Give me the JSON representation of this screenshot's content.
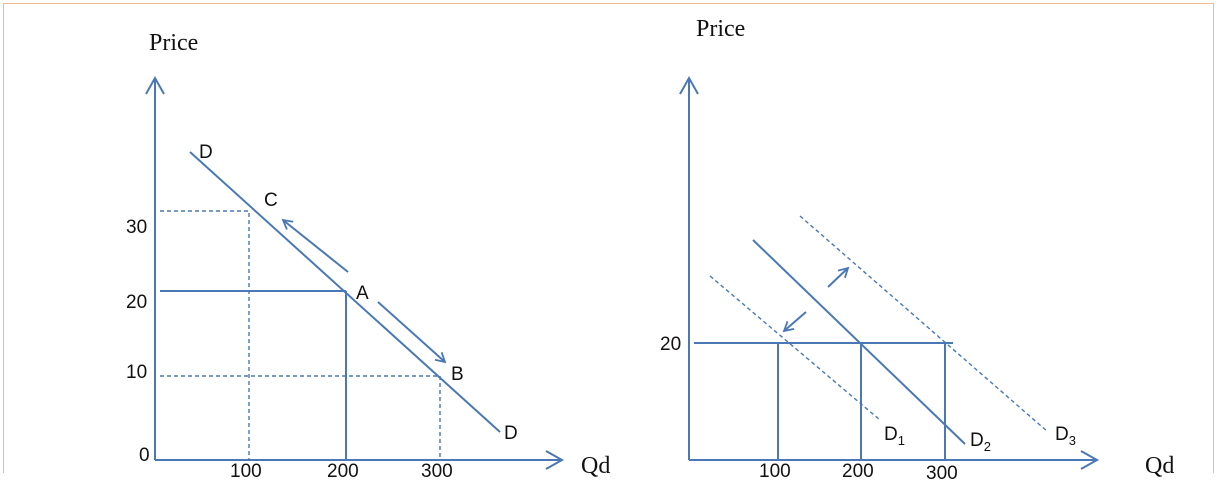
{
  "left": {
    "y_axis_label": "Price",
    "x_axis_label": "Qd",
    "y_ticks": [
      "30",
      "20",
      "10",
      "0"
    ],
    "x_ticks": [
      "100",
      "200",
      "300"
    ],
    "curve_label_top": "D",
    "curve_label_bottom": "D",
    "points": {
      "a": "A",
      "b": "B",
      "c": "C"
    }
  },
  "right": {
    "y_axis_label": "Price",
    "x_axis_label": "Qd",
    "y_ticks": [
      "20"
    ],
    "x_ticks": [
      "100",
      "200",
      "300"
    ],
    "curves": [
      {
        "label": "D",
        "sub": "1"
      },
      {
        "label": "D",
        "sub": "2"
      },
      {
        "label": "D",
        "sub": "3"
      }
    ]
  },
  "colors": {
    "line": "#4a78b5",
    "frame": "#f2b98e",
    "text": "#111111"
  }
}
